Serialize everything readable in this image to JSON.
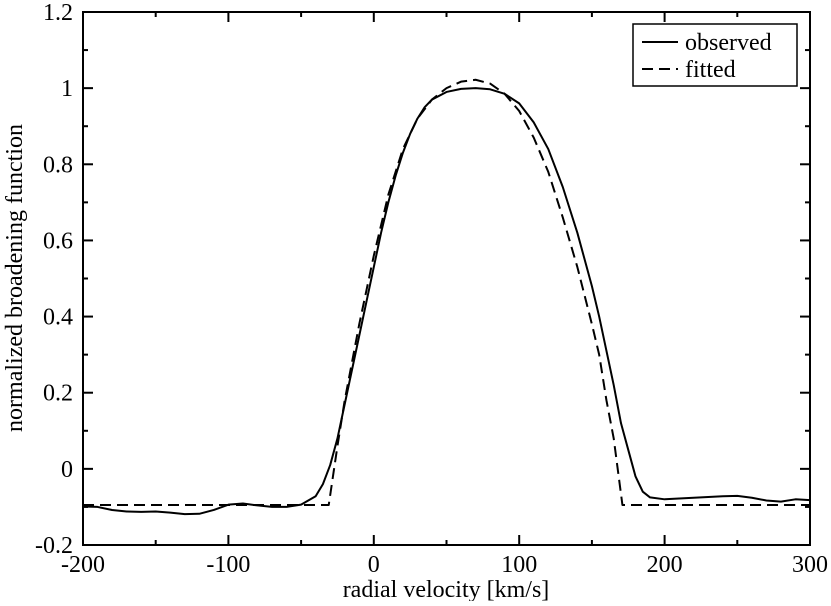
{
  "chart_data": {
    "type": "line",
    "title": "",
    "xlabel": "radial velocity [km/s]",
    "ylabel": "normalized broadening function",
    "xlim": [
      -200,
      300
    ],
    "ylim": [
      -0.2,
      1.2
    ],
    "x_ticks": [
      -200,
      -100,
      0,
      100,
      200,
      300
    ],
    "x_tick_labels": [
      "-200",
      "-100",
      "0",
      "100",
      "200",
      "300"
    ],
    "y_ticks": [
      -0.2,
      0,
      0.2,
      0.4,
      0.6,
      0.8,
      1.0,
      1.2
    ],
    "y_tick_labels": [
      "-0.2",
      "0",
      "0.2",
      "0.4",
      "0.6",
      "0.8",
      "1",
      "1.2"
    ],
    "grid": false,
    "legend": "top-right",
    "series": [
      {
        "name": "observed",
        "style": "solid",
        "color": "#000000",
        "points": [
          [
            -200,
            -0.099
          ],
          [
            -190,
            -0.1
          ],
          [
            -180,
            -0.108
          ],
          [
            -170,
            -0.112
          ],
          [
            -160,
            -0.113
          ],
          [
            -150,
            -0.112
          ],
          [
            -140,
            -0.115
          ],
          [
            -130,
            -0.119
          ],
          [
            -120,
            -0.118
          ],
          [
            -110,
            -0.108
          ],
          [
            -100,
            -0.094
          ],
          [
            -90,
            -0.091
          ],
          [
            -80,
            -0.096
          ],
          [
            -70,
            -0.1
          ],
          [
            -60,
            -0.1
          ],
          [
            -50,
            -0.094
          ],
          [
            -40,
            -0.072
          ],
          [
            -35,
            -0.04
          ],
          [
            -30,
            0.01
          ],
          [
            -25,
            0.08
          ],
          [
            -20,
            0.17
          ],
          [
            -15,
            0.26
          ],
          [
            -10,
            0.35
          ],
          [
            -5,
            0.44
          ],
          [
            0,
            0.53
          ],
          [
            5,
            0.62
          ],
          [
            10,
            0.7
          ],
          [
            15,
            0.77
          ],
          [
            20,
            0.83
          ],
          [
            25,
            0.88
          ],
          [
            30,
            0.92
          ],
          [
            35,
            0.95
          ],
          [
            40,
            0.97
          ],
          [
            50,
            0.99
          ],
          [
            60,
            0.998
          ],
          [
            70,
            1.0
          ],
          [
            80,
            0.997
          ],
          [
            90,
            0.985
          ],
          [
            100,
            0.96
          ],
          [
            110,
            0.91
          ],
          [
            120,
            0.84
          ],
          [
            130,
            0.74
          ],
          [
            140,
            0.62
          ],
          [
            150,
            0.48
          ],
          [
            155,
            0.4
          ],
          [
            160,
            0.31
          ],
          [
            165,
            0.22
          ],
          [
            170,
            0.12
          ],
          [
            175,
            0.05
          ],
          [
            180,
            -0.02
          ],
          [
            185,
            -0.06
          ],
          [
            190,
            -0.075
          ],
          [
            200,
            -0.08
          ],
          [
            210,
            -0.078
          ],
          [
            220,
            -0.076
          ],
          [
            230,
            -0.074
          ],
          [
            240,
            -0.072
          ],
          [
            250,
            -0.071
          ],
          [
            260,
            -0.076
          ],
          [
            270,
            -0.083
          ],
          [
            280,
            -0.086
          ],
          [
            290,
            -0.08
          ],
          [
            300,
            -0.082
          ]
        ]
      },
      {
        "name": "fitted",
        "style": "dashed",
        "color": "#000000",
        "points": [
          [
            -200,
            -0.095
          ],
          [
            -100,
            -0.095
          ],
          [
            -40,
            -0.095
          ],
          [
            -31,
            -0.095
          ],
          [
            -25,
            0.06
          ],
          [
            -20,
            0.18
          ],
          [
            -15,
            0.28
          ],
          [
            -10,
            0.38
          ],
          [
            -5,
            0.47
          ],
          [
            0,
            0.56
          ],
          [
            5,
            0.64
          ],
          [
            10,
            0.72
          ],
          [
            20,
            0.84
          ],
          [
            30,
            0.92
          ],
          [
            40,
            0.97
          ],
          [
            50,
            1.0
          ],
          [
            60,
            1.017
          ],
          [
            70,
            1.022
          ],
          [
            80,
            1.012
          ],
          [
            90,
            0.985
          ],
          [
            100,
            0.94
          ],
          [
            110,
            0.87
          ],
          [
            120,
            0.78
          ],
          [
            130,
            0.66
          ],
          [
            140,
            0.53
          ],
          [
            150,
            0.38
          ],
          [
            155,
            0.3
          ],
          [
            160,
            0.18
          ],
          [
            165,
            0.08
          ],
          [
            171,
            -0.095
          ],
          [
            200,
            -0.095
          ],
          [
            250,
            -0.095
          ],
          [
            300,
            -0.095
          ]
        ]
      }
    ]
  }
}
